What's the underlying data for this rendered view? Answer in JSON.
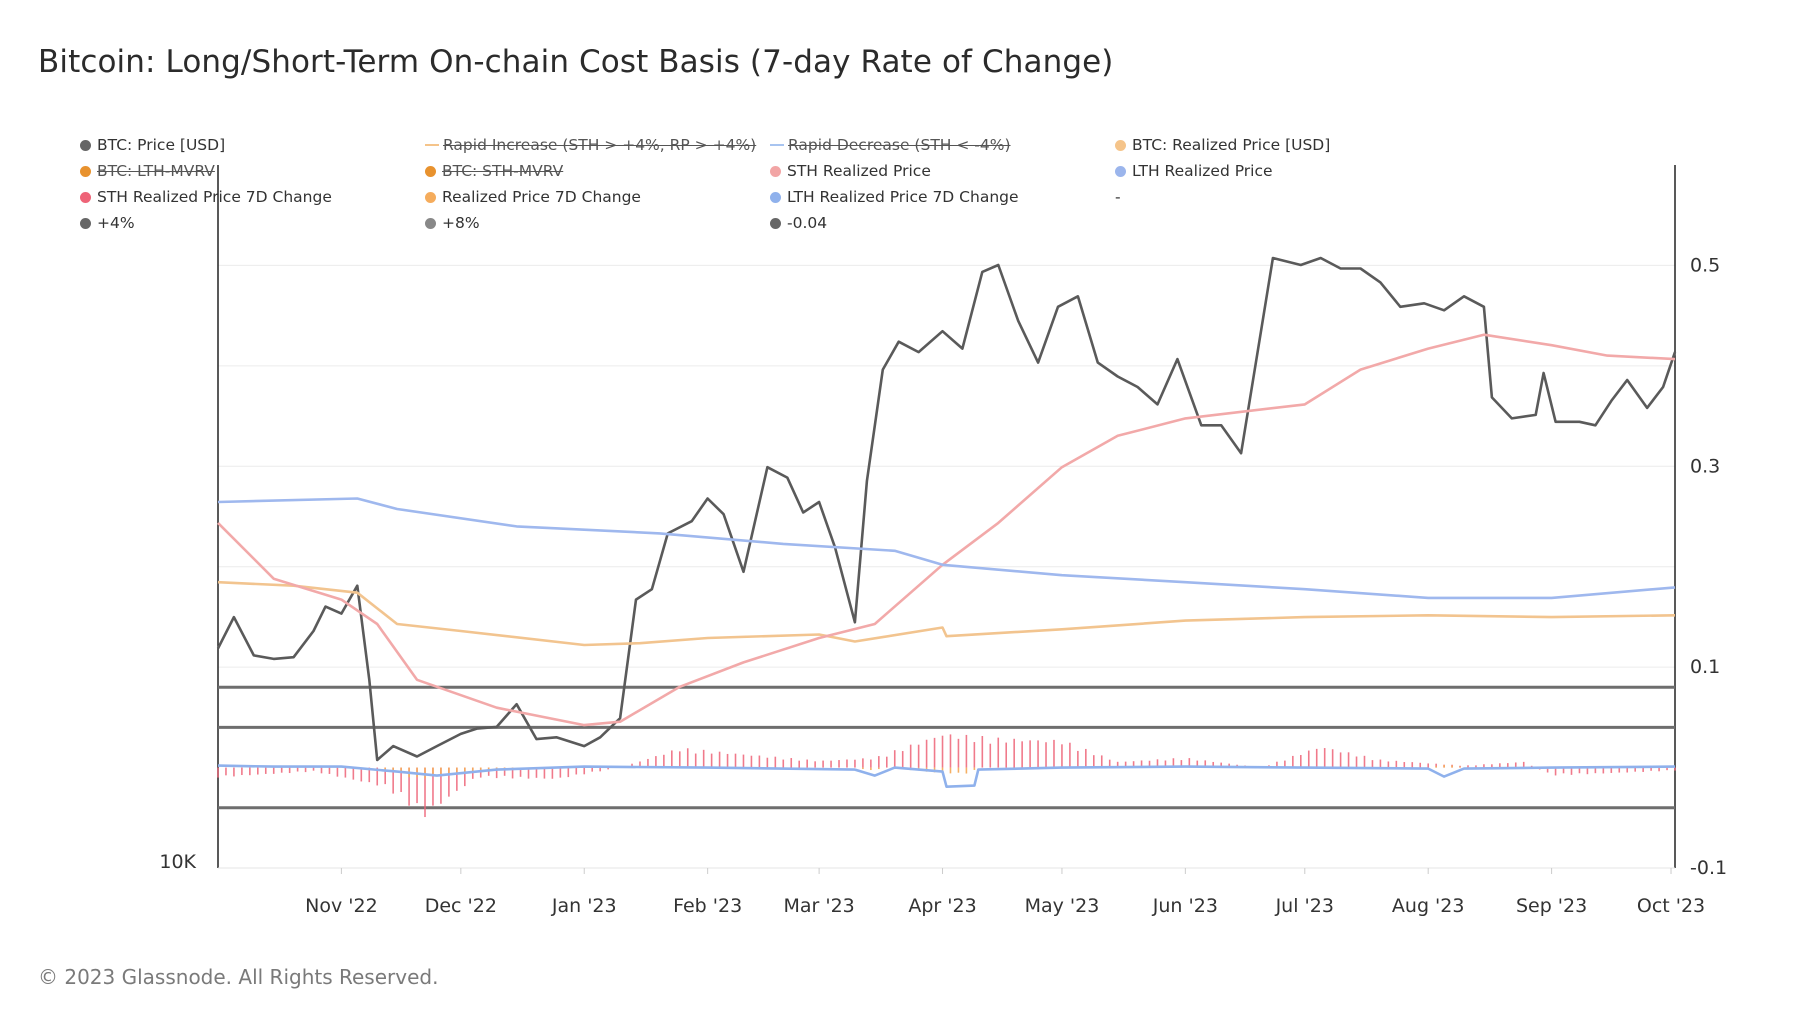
{
  "chart_data": {
    "type": "line",
    "title": "Bitcoin: Long/Short-Term On-chain Cost Basis (7-day Rate of Change)",
    "copyright": "© 2023 Glassnode. All Rights Reserved.",
    "legend": [
      {
        "label": "BTC: Price [USD]",
        "color": "#666666",
        "marker": "dot",
        "active": true
      },
      {
        "label": "Rapid Increase (STH > +4%, RP > +4%)",
        "color": "#f5c48a",
        "marker": "line",
        "active": false
      },
      {
        "label": "Rapid Decrease (STH < -4%)",
        "color": "#a8c4f0",
        "marker": "line",
        "active": false
      },
      {
        "label": "BTC: Realized Price [USD]",
        "color": "#f5c48a",
        "marker": "dot",
        "active": true
      },
      {
        "label": "BTC: LTH-MVRV",
        "color": "#e8922e",
        "marker": "dot",
        "active": false
      },
      {
        "label": "BTC: STH-MVRV",
        "color": "#e8922e",
        "marker": "dot",
        "active": false
      },
      {
        "label": "STH Realized Price",
        "color": "#f2a5a5",
        "marker": "dot",
        "active": true
      },
      {
        "label": "LTH Realized Price",
        "color": "#9bb5ec",
        "marker": "dot",
        "active": true
      },
      {
        "label": "STH Realized Price 7D Change",
        "color": "#ee6377",
        "marker": "dot",
        "active": true
      },
      {
        "label": "Realized Price 7D Change",
        "color": "#f5ac5c",
        "marker": "dot",
        "active": true
      },
      {
        "label": "LTH Realized Price 7D Change",
        "color": "#8fb1ec",
        "marker": "dot",
        "active": true
      },
      {
        "label": "-",
        "color": "",
        "marker": "none",
        "active": true
      },
      {
        "label": "+4%",
        "color": "#666666",
        "marker": "dot",
        "active": true
      },
      {
        "label": "+8%",
        "color": "#888888",
        "marker": "dot",
        "active": true
      },
      {
        "label": "-0.04",
        "color": "#666666",
        "marker": "dot",
        "active": true
      }
    ],
    "x_ticks": [
      "Nov '22",
      "Dec '22",
      "Jan '23",
      "Feb '23",
      "Mar '23",
      "Apr '23",
      "May '23",
      "Jun '23",
      "Jul '23",
      "Aug '23",
      "Sep '23",
      "Oct '23"
    ],
    "x_range": [
      "2022-10-01",
      "2023-10-02"
    ],
    "y_left_label": "10K",
    "y_right_ticks": [
      "0.5",
      "0.3",
      "0.1",
      "-0.1"
    ],
    "y_right_range": [
      -0.1,
      0.6
    ],
    "y_price_range": [
      10000,
      45000
    ],
    "reference_lines": [
      {
        "name": "+8%",
        "value": 0.08
      },
      {
        "name": "+4%",
        "value": 0.04
      },
      {
        "name": "-0.04",
        "value": -0.04
      }
    ],
    "series": [
      {
        "name": "BTC: Price [USD]",
        "axis": "price",
        "color": "#5a5a5a",
        "points": [
          [
            "2022-10-01",
            19400
          ],
          [
            "2022-10-05",
            20300
          ],
          [
            "2022-10-10",
            19200
          ],
          [
            "2022-10-15",
            19100
          ],
          [
            "2022-10-20",
            19150
          ],
          [
            "2022-10-25",
            19900
          ],
          [
            "2022-10-28",
            20600
          ],
          [
            "2022-11-01",
            20400
          ],
          [
            "2022-11-05",
            21200
          ],
          [
            "2022-11-08",
            18500
          ],
          [
            "2022-11-10",
            16200
          ],
          [
            "2022-11-14",
            16600
          ],
          [
            "2022-11-20",
            16300
          ],
          [
            "2022-11-25",
            16600
          ],
          [
            "2022-12-01",
            16950
          ],
          [
            "2022-12-05",
            17100
          ],
          [
            "2022-12-10",
            17150
          ],
          [
            "2022-12-15",
            17800
          ],
          [
            "2022-12-20",
            16800
          ],
          [
            "2022-12-25",
            16850
          ],
          [
            "2023-01-01",
            16600
          ],
          [
            "2023-01-05",
            16850
          ],
          [
            "2023-01-10",
            17400
          ],
          [
            "2023-01-14",
            20800
          ],
          [
            "2023-01-18",
            21100
          ],
          [
            "2023-01-22",
            22700
          ],
          [
            "2023-01-28",
            23050
          ],
          [
            "2023-02-01",
            23700
          ],
          [
            "2023-02-05",
            23250
          ],
          [
            "2023-02-10",
            21600
          ],
          [
            "2023-02-16",
            24600
          ],
          [
            "2023-02-21",
            24300
          ],
          [
            "2023-02-25",
            23300
          ],
          [
            "2023-03-01",
            23600
          ],
          [
            "2023-03-05",
            22300
          ],
          [
            "2023-03-10",
            20150
          ],
          [
            "2023-03-13",
            24200
          ],
          [
            "2023-03-17",
            27400
          ],
          [
            "2023-03-21",
            28200
          ],
          [
            "2023-03-26",
            27900
          ],
          [
            "2023-04-01",
            28500
          ],
          [
            "2023-04-06",
            28000
          ],
          [
            "2023-04-11",
            30200
          ],
          [
            "2023-04-15",
            30400
          ],
          [
            "2023-04-20",
            28800
          ],
          [
            "2023-04-25",
            27600
          ],
          [
            "2023-04-30",
            29200
          ],
          [
            "2023-05-05",
            29500
          ],
          [
            "2023-05-10",
            27600
          ],
          [
            "2023-05-15",
            27200
          ],
          [
            "2023-05-20",
            26900
          ],
          [
            "2023-05-25",
            26400
          ],
          [
            "2023-05-30",
            27700
          ],
          [
            "2023-06-05",
            25800
          ],
          [
            "2023-06-10",
            25800
          ],
          [
            "2023-06-15",
            25000
          ],
          [
            "2023-06-20",
            28500
          ],
          [
            "2023-06-23",
            30600
          ],
          [
            "2023-06-30",
            30400
          ],
          [
            "2023-07-05",
            30600
          ],
          [
            "2023-07-10",
            30300
          ],
          [
            "2023-07-15",
            30300
          ],
          [
            "2023-07-20",
            29900
          ],
          [
            "2023-07-25",
            29200
          ],
          [
            "2023-07-31",
            29300
          ],
          [
            "2023-08-05",
            29100
          ],
          [
            "2023-08-10",
            29500
          ],
          [
            "2023-08-15",
            29200
          ],
          [
            "2023-08-17",
            26600
          ],
          [
            "2023-08-22",
            26000
          ],
          [
            "2023-08-28",
            26100
          ],
          [
            "2023-08-30",
            27300
          ],
          [
            "2023-09-02",
            25900
          ],
          [
            "2023-09-08",
            25900
          ],
          [
            "2023-09-12",
            25800
          ],
          [
            "2023-09-16",
            26500
          ],
          [
            "2023-09-20",
            27100
          ],
          [
            "2023-09-25",
            26300
          ],
          [
            "2023-09-29",
            26900
          ],
          [
            "2023-10-02",
            27900
          ]
        ]
      },
      {
        "name": "BTC: Realized Price [USD]",
        "axis": "price",
        "color": "#f2c48f",
        "points": [
          [
            "2022-10-01",
            21300
          ],
          [
            "2022-10-20",
            21200
          ],
          [
            "2022-11-05",
            21000
          ],
          [
            "2022-11-15",
            20100
          ],
          [
            "2022-12-01",
            19900
          ],
          [
            "2023-01-01",
            19500
          ],
          [
            "2023-01-15",
            19550
          ],
          [
            "2023-02-01",
            19700
          ],
          [
            "2023-03-01",
            19800
          ],
          [
            "2023-03-10",
            19600
          ],
          [
            "2023-04-01",
            20000
          ],
          [
            "2023-04-02",
            19750
          ],
          [
            "2023-05-01",
            19950
          ],
          [
            "2023-06-01",
            20200
          ],
          [
            "2023-07-01",
            20300
          ],
          [
            "2023-08-01",
            20350
          ],
          [
            "2023-09-01",
            20300
          ],
          [
            "2023-10-02",
            20350
          ]
        ]
      },
      {
        "name": "STH Realized Price",
        "axis": "price",
        "color": "#f2a9a9",
        "points": [
          [
            "2022-10-01",
            23000
          ],
          [
            "2022-10-15",
            21400
          ],
          [
            "2022-11-01",
            20800
          ],
          [
            "2022-11-10",
            20100
          ],
          [
            "2022-11-20",
            18500
          ],
          [
            "2022-12-10",
            17700
          ],
          [
            "2023-01-01",
            17200
          ],
          [
            "2023-01-10",
            17300
          ],
          [
            "2023-01-25",
            18300
          ],
          [
            "2023-02-10",
            19000
          ],
          [
            "2023-03-01",
            19700
          ],
          [
            "2023-03-15",
            20100
          ],
          [
            "2023-04-01",
            21800
          ],
          [
            "2023-04-15",
            23000
          ],
          [
            "2023-05-01",
            24600
          ],
          [
            "2023-05-15",
            25500
          ],
          [
            "2023-06-01",
            26000
          ],
          [
            "2023-07-01",
            26400
          ],
          [
            "2023-07-15",
            27400
          ],
          [
            "2023-08-01",
            28000
          ],
          [
            "2023-08-15",
            28400
          ],
          [
            "2023-09-01",
            28100
          ],
          [
            "2023-09-15",
            27800
          ],
          [
            "2023-10-02",
            27700
          ]
        ]
      },
      {
        "name": "LTH Realized Price",
        "axis": "price",
        "color": "#9fb8ee",
        "points": [
          [
            "2022-10-01",
            23600
          ],
          [
            "2022-11-05",
            23700
          ],
          [
            "2022-11-15",
            23400
          ],
          [
            "2022-12-15",
            22900
          ],
          [
            "2023-01-20",
            22700
          ],
          [
            "2023-02-20",
            22400
          ],
          [
            "2023-03-20",
            22200
          ],
          [
            "2023-04-01",
            21800
          ],
          [
            "2023-05-01",
            21500
          ],
          [
            "2023-06-01",
            21300
          ],
          [
            "2023-07-01",
            21100
          ],
          [
            "2023-08-01",
            20850
          ],
          [
            "2023-09-01",
            20850
          ],
          [
            "2023-10-02",
            21150
          ]
        ]
      },
      {
        "name": "LTH Realized Price 7D Change",
        "axis": "ratio",
        "color": "#8fb1ec",
        "points": [
          [
            "2022-10-01",
            0.002
          ],
          [
            "2022-10-15",
            0.001
          ],
          [
            "2022-11-01",
            0.001
          ],
          [
            "2022-11-15",
            -0.004
          ],
          [
            "2022-11-25",
            -0.008
          ],
          [
            "2022-12-10",
            -0.002
          ],
          [
            "2023-01-01",
            0.001
          ],
          [
            "2023-02-01",
            0.0
          ],
          [
            "2023-03-10",
            -0.002
          ],
          [
            "2023-03-15",
            -0.008
          ],
          [
            "2023-03-20",
            0.0
          ],
          [
            "2023-04-01",
            -0.004
          ],
          [
            "2023-04-02",
            -0.019
          ],
          [
            "2023-04-09",
            -0.018
          ],
          [
            "2023-04-10",
            -0.002
          ],
          [
            "2023-05-01",
            0.0
          ],
          [
            "2023-06-01",
            0.001
          ],
          [
            "2023-07-01",
            0.0
          ],
          [
            "2023-08-01",
            -0.001
          ],
          [
            "2023-08-05",
            -0.009
          ],
          [
            "2023-08-10",
            -0.001
          ],
          [
            "2023-09-01",
            0.0
          ],
          [
            "2023-10-02",
            0.001
          ]
        ]
      }
    ],
    "bar_series": [
      {
        "name": "STH Realized Price 7D Change",
        "color": "#ee6377",
        "anchors": [
          [
            "2022-10-01",
            -0.01
          ],
          [
            "2022-10-25",
            -0.004
          ],
          [
            "2022-11-12",
            -0.02
          ],
          [
            "2022-11-22",
            -0.05
          ],
          [
            "2022-12-05",
            -0.01
          ],
          [
            "2022-12-25",
            -0.012
          ],
          [
            "2023-01-10",
            0.0
          ],
          [
            "2023-01-25",
            0.02
          ],
          [
            "2023-02-15",
            0.012
          ],
          [
            "2023-03-01",
            0.007
          ],
          [
            "2023-03-15",
            0.01
          ],
          [
            "2023-04-01",
            0.035
          ],
          [
            "2023-04-15",
            0.03
          ],
          [
            "2023-05-01",
            0.028
          ],
          [
            "2023-05-15",
            0.006
          ],
          [
            "2023-06-01",
            0.01
          ],
          [
            "2023-06-20",
            0.0
          ],
          [
            "2023-07-05",
            0.022
          ],
          [
            "2023-07-20",
            0.008
          ],
          [
            "2023-08-10",
            0.002
          ],
          [
            "2023-08-25",
            0.006
          ],
          [
            "2023-09-01",
            -0.008
          ],
          [
            "2023-09-15",
            -0.006
          ],
          [
            "2023-10-02",
            -0.003
          ]
        ]
      },
      {
        "name": "Realized Price 7D Change",
        "color": "#f5ac5c",
        "anchors": [
          [
            "2022-10-01",
            0.0
          ],
          [
            "2022-11-10",
            0.0
          ],
          [
            "2022-11-20",
            -0.012
          ],
          [
            "2022-12-05",
            -0.004
          ],
          [
            "2022-12-20",
            -0.001
          ],
          [
            "2023-01-10",
            0.0
          ],
          [
            "2023-03-10",
            0.0
          ],
          [
            "2023-03-14",
            -0.003
          ],
          [
            "2023-03-18",
            0.0
          ],
          [
            "2023-04-01",
            -0.006
          ],
          [
            "2023-04-08",
            -0.006
          ],
          [
            "2023-04-10",
            0.0
          ],
          [
            "2023-08-01",
            0.0
          ],
          [
            "2023-08-05",
            0.003
          ],
          [
            "2023-08-12",
            0.0
          ],
          [
            "2023-10-02",
            0.0
          ]
        ]
      }
    ]
  }
}
